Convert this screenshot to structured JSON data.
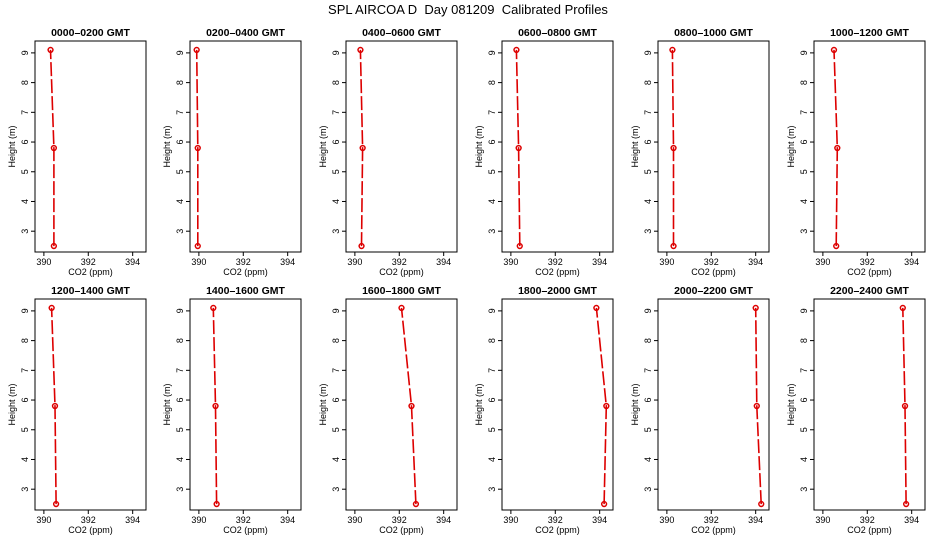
{
  "title": "SPL AIRCOA D  Day 081209  Calibrated Profiles",
  "chart_data": {
    "type": "line",
    "xlabel": "CO2 (ppm)",
    "ylabel": "Height (m)",
    "xlim": [
      389.6,
      394.6
    ],
    "ylim": [
      2.3,
      9.4
    ],
    "x_ticks": [
      390,
      392,
      394
    ],
    "y_ticks": [
      3,
      4,
      5,
      6,
      7,
      8,
      9
    ],
    "heights": [
      2.5,
      5.8,
      9.1
    ],
    "line_color": "#dd0000",
    "grid": false,
    "panels": [
      {
        "title": "0000–0200 GMT",
        "values": [
          390.45,
          390.45,
          390.3
        ]
      },
      {
        "title": "0200–0400 GMT",
        "values": [
          389.95,
          389.95,
          389.9
        ]
      },
      {
        "title": "0400–0600 GMT",
        "values": [
          390.3,
          390.35,
          390.25
        ]
      },
      {
        "title": "0600–0800 GMT",
        "values": [
          390.4,
          390.35,
          390.25
        ]
      },
      {
        "title": "0800–1000 GMT",
        "values": [
          390.3,
          390.3,
          390.25
        ]
      },
      {
        "title": "1000–1200 GMT",
        "values": [
          390.6,
          390.65,
          390.5
        ]
      },
      {
        "title": "1200–1400 GMT",
        "values": [
          390.55,
          390.5,
          390.35
        ]
      },
      {
        "title": "1400–1600 GMT",
        "values": [
          390.8,
          390.75,
          390.65
        ]
      },
      {
        "title": "1600–1800 GMT",
        "values": [
          392.75,
          392.55,
          392.1
        ]
      },
      {
        "title": "1800–2000 GMT",
        "values": [
          394.2,
          394.3,
          393.85
        ]
      },
      {
        "title": "2000–2200 GMT",
        "values": [
          394.25,
          394.05,
          394.0
        ]
      },
      {
        "title": "2200–2400 GMT",
        "values": [
          393.75,
          393.7,
          393.6
        ]
      }
    ]
  }
}
